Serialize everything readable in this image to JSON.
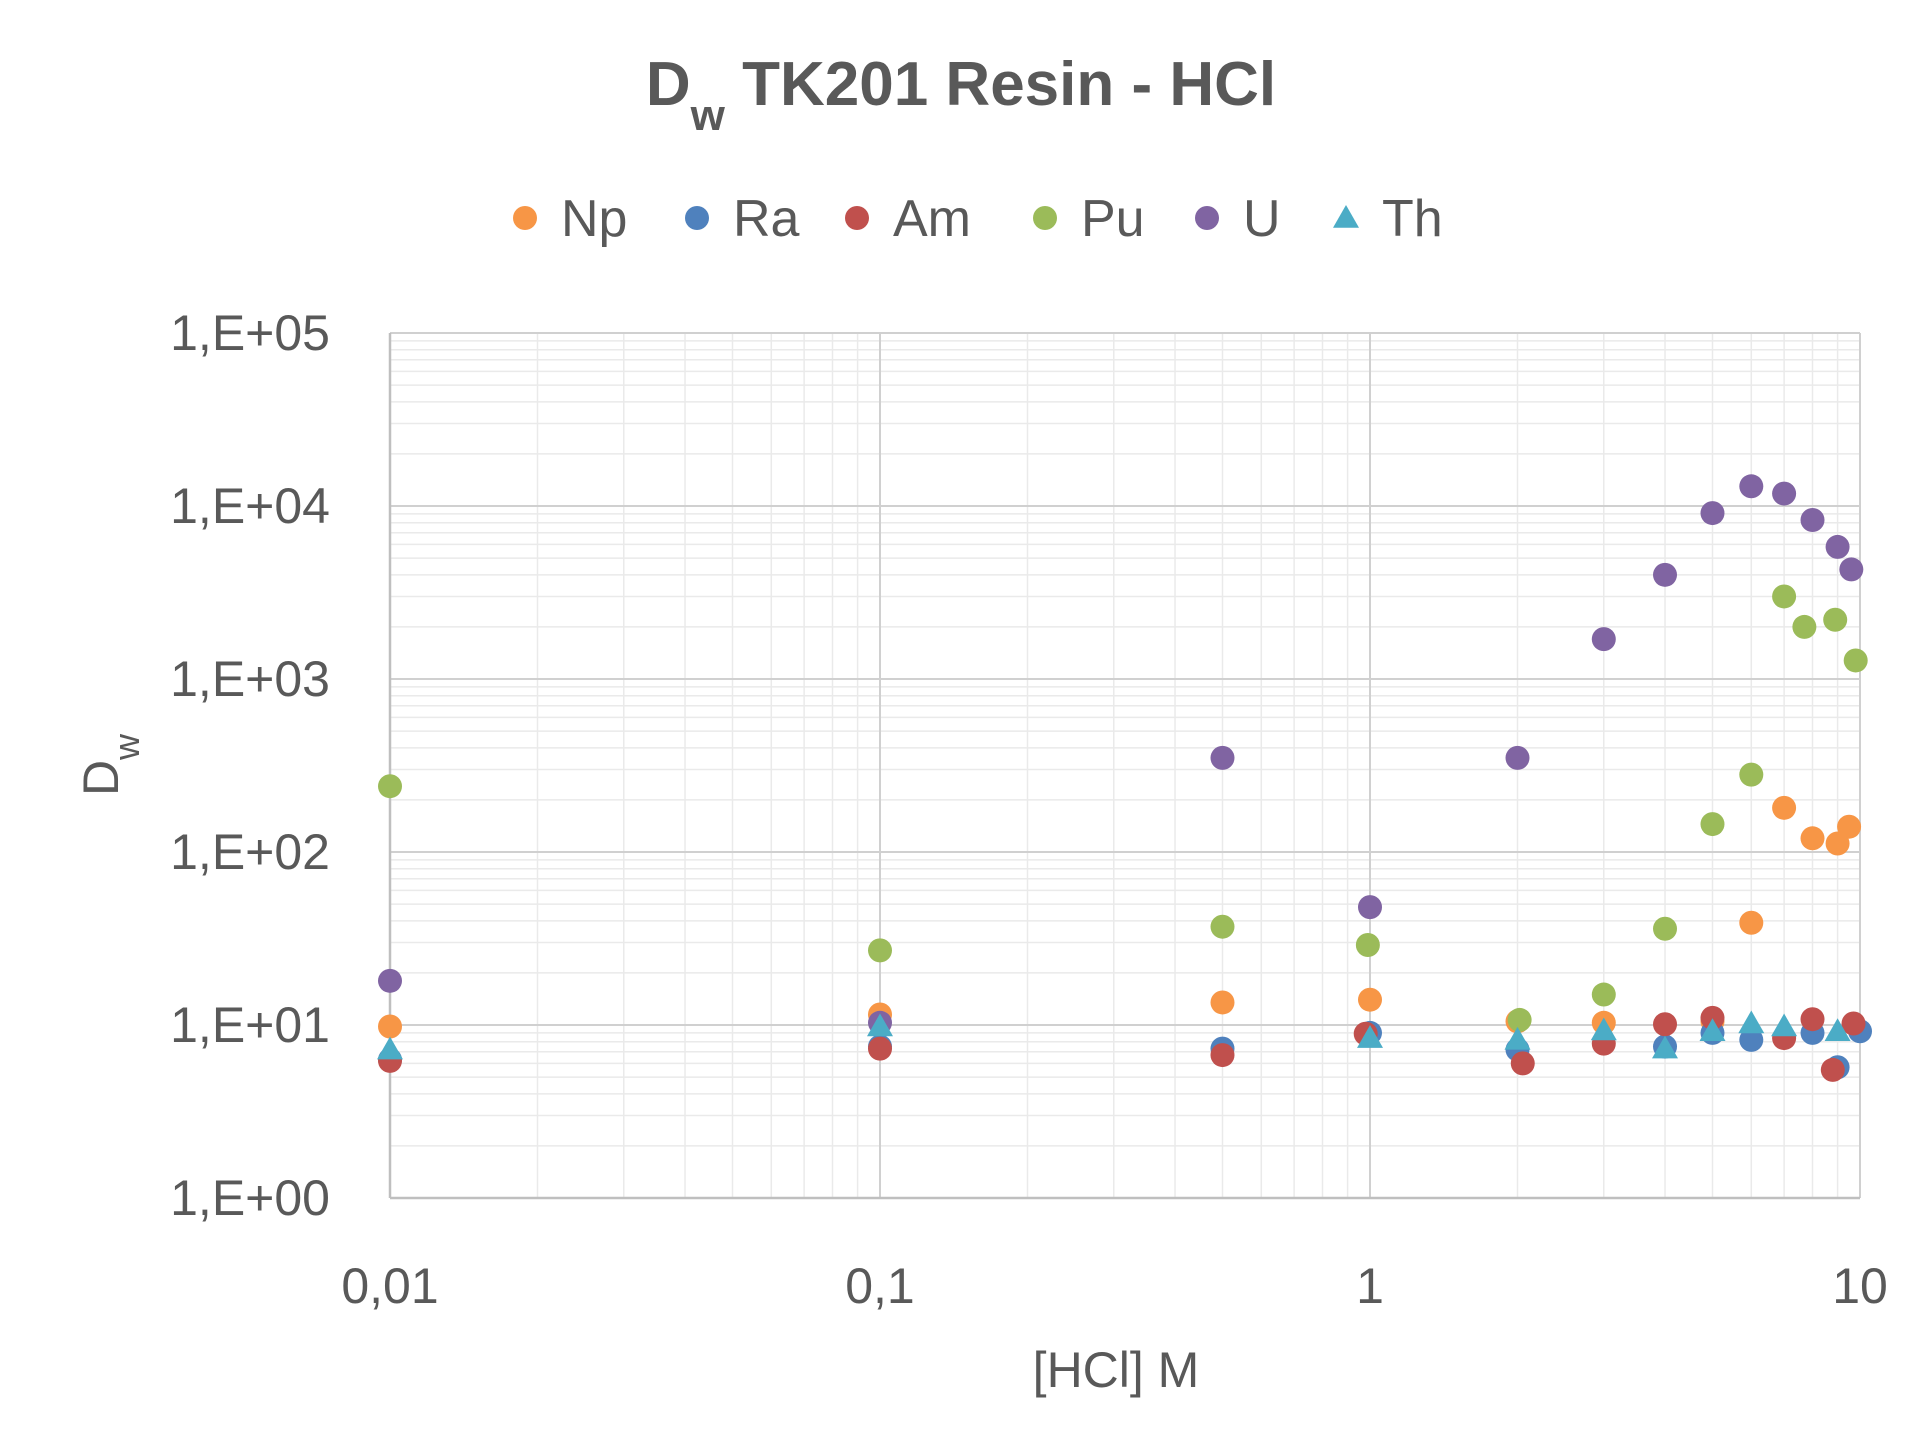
{
  "chart_data": {
    "type": "scatter",
    "title": {
      "main": "D",
      "sub": "w",
      "rest": " TK201 Resin - HCl"
    },
    "xlabel": "[HCl] M",
    "ylabel": {
      "main": "D",
      "sub": "w"
    },
    "x_scale": "log",
    "y_scale": "log",
    "xlim": [
      0.01,
      10
    ],
    "ylim": [
      1,
      100000
    ],
    "x_ticks": [
      {
        "value": 0.01,
        "label": "0,01"
      },
      {
        "value": 0.1,
        "label": "0,1"
      },
      {
        "value": 1,
        "label": "1"
      },
      {
        "value": 10,
        "label": "10"
      }
    ],
    "y_ticks": [
      {
        "value": 1,
        "label": "1,E+00"
      },
      {
        "value": 10,
        "label": "1,E+01"
      },
      {
        "value": 100,
        "label": "1,E+02"
      },
      {
        "value": 1000,
        "label": "1,E+03"
      },
      {
        "value": 10000,
        "label": "1,E+04"
      },
      {
        "value": 100000,
        "label": "1,E+05"
      }
    ],
    "grid": true,
    "legend_position": "top",
    "series": [
      {
        "name": "Np",
        "color": "#F79646",
        "marker": "circle",
        "x": [
          0.01,
          0.1,
          0.5,
          1,
          2,
          3,
          5,
          6,
          7,
          8,
          9,
          9.5
        ],
        "y": [
          9.8,
          11.5,
          13.5,
          14,
          10.5,
          10.3,
          10.5,
          39,
          180,
          120,
          112,
          140
        ]
      },
      {
        "name": "Ra",
        "color": "#4F81BD",
        "marker": "circle",
        "x": [
          0.01,
          0.1,
          0.5,
          1,
          2,
          4,
          5,
          6,
          8,
          9,
          10
        ],
        "y": [
          6.3,
          7.5,
          7.3,
          9,
          7.2,
          7.5,
          9,
          8.2,
          9,
          5.7,
          9.2
        ]
      },
      {
        "name": "Am",
        "color": "#C0504D",
        "marker": "circle",
        "x": [
          0.01,
          0.1,
          0.5,
          0.98,
          2.05,
          3,
          4,
          5,
          7,
          8,
          8.8,
          9.7
        ],
        "y": [
          6.2,
          7.3,
          6.7,
          8.9,
          6,
          7.8,
          10.1,
          11,
          8.4,
          10.8,
          5.5,
          10.2
        ]
      },
      {
        "name": "Pu",
        "color": "#9BBB59",
        "marker": "circle",
        "x": [
          0.01,
          0.1,
          0.5,
          0.99,
          2.02,
          3,
          4,
          5,
          6,
          7,
          7.7,
          8.9,
          9.8
        ],
        "y": [
          240,
          27,
          37,
          29,
          10.7,
          15,
          36,
          145,
          280,
          3000,
          2000,
          2200,
          1280
        ]
      },
      {
        "name": "U",
        "color": "#8064A2",
        "marker": "circle",
        "x": [
          0.01,
          0.1,
          0.5,
          1,
          2,
          3,
          4,
          5,
          6,
          7,
          8,
          9,
          9.6
        ],
        "y": [
          18,
          10.3,
          350,
          48,
          350,
          1700,
          4000,
          9100,
          13000,
          11800,
          8300,
          5800,
          4300
        ]
      },
      {
        "name": "Th",
        "color": "#4BACC6",
        "marker": "triangle",
        "x": [
          0.01,
          0.1,
          1,
          2,
          3,
          4,
          5,
          6,
          7,
          9
        ],
        "y": [
          7.2,
          9.8,
          8.4,
          8.2,
          9.3,
          7.3,
          9.2,
          10.2,
          9.8,
          9.2
        ]
      }
    ]
  }
}
